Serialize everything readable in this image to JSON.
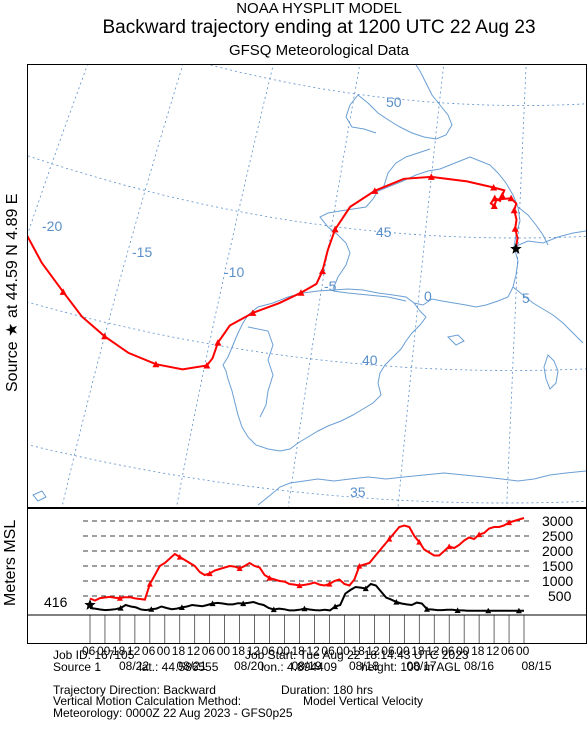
{
  "header": {
    "model": "NOAA HYSPLIT MODEL",
    "title": "Backward trajectory ending at 1200 UTC 22 Aug 23",
    "data": "GFSQ Meteorological Data"
  },
  "side": {
    "source_prefix": "Source",
    "star": "★",
    "source_suffix": "at   44.59 N   4.89 E",
    "altitude_label": "Meters MSL"
  },
  "map": {
    "lon_labels": [
      "-20",
      "-15",
      "-10",
      "-5",
      "0",
      "5"
    ],
    "lat_labels": [
      "50",
      "45",
      "40",
      "35"
    ],
    "colors": {
      "trajectory": "#ff0000",
      "grid": "#5b8fc9",
      "coast": "#6a9fd4",
      "label": "#5b8fc9"
    },
    "source": {
      "lat": 44.586555,
      "lon": 4.894409
    },
    "trajectory": [
      {
        "lon": 4.89,
        "lat": 44.59
      },
      {
        "lon": 4.95,
        "lat": 45.0
      },
      {
        "lon": 4.8,
        "lat": 45.35
      },
      {
        "lon": 4.85,
        "lat": 45.7
      },
      {
        "lon": 4.7,
        "lat": 46.05
      },
      {
        "lon": 4.8,
        "lat": 46.3
      },
      {
        "lon": 4.5,
        "lat": 46.5
      },
      {
        "lon": 3.7,
        "lat": 46.45
      },
      {
        "lon": 3.6,
        "lat": 46.2
      },
      {
        "lon": 3.4,
        "lat": 46.3
      },
      {
        "lon": 3.6,
        "lat": 46.5
      },
      {
        "lon": 3.9,
        "lat": 46.4
      },
      {
        "lon": 4.0,
        "lat": 46.6
      },
      {
        "lon": 4.1,
        "lat": 46.8
      },
      {
        "lon": 3.5,
        "lat": 46.9
      },
      {
        "lon": 2.0,
        "lat": 47.1
      },
      {
        "lon": 0.0,
        "lat": 47.2
      },
      {
        "lon": -1.5,
        "lat": 47.05
      },
      {
        "lon": -3.0,
        "lat": 46.5
      },
      {
        "lon": -4.2,
        "lat": 45.8
      },
      {
        "lon": -4.8,
        "lat": 44.9
      },
      {
        "lon": -5.0,
        "lat": 44.1
      },
      {
        "lon": -5.1,
        "lat": 43.3
      },
      {
        "lon": -5.3,
        "lat": 42.8
      },
      {
        "lon": -6.0,
        "lat": 42.4
      },
      {
        "lon": -7.0,
        "lat": 41.9
      },
      {
        "lon": -8.2,
        "lat": 41.4
      },
      {
        "lon": -9.2,
        "lat": 40.8
      },
      {
        "lon": -9.6,
        "lat": 40.1
      },
      {
        "lon": -9.7,
        "lat": 39.5
      },
      {
        "lon": -9.9,
        "lat": 39.2
      },
      {
        "lon": -11.0,
        "lat": 38.9
      },
      {
        "lon": -12.3,
        "lat": 38.9
      },
      {
        "lon": -13.7,
        "lat": 39.1
      },
      {
        "lon": -15.0,
        "lat": 39.5
      },
      {
        "lon": -16.3,
        "lat": 40.0
      },
      {
        "lon": -17.5,
        "lat": 40.7
      },
      {
        "lon": -18.9,
        "lat": 41.5
      },
      {
        "lon": -20.3,
        "lat": 42.5
      },
      {
        "lon": -21.5,
        "lat": 43.3
      },
      {
        "lon": -22.6,
        "lat": 44.0
      }
    ]
  },
  "profile": {
    "start_value": "416",
    "y_labels": [
      "3000",
      "2500",
      "2000",
      "1500",
      "1000",
      "500"
    ],
    "y_values": [
      3000,
      2500,
      2000,
      1500,
      1000,
      500
    ],
    "hour_ticks": [
      "06",
      "00",
      "18",
      "12",
      "06",
      "00",
      "18",
      "12",
      "06",
      "00",
      "18",
      "12",
      "06",
      "00",
      "18",
      "12",
      "06",
      "00",
      "18",
      "12",
      "06",
      "00",
      "18",
      "12",
      "06",
      "00",
      "18",
      "12",
      "06",
      "00"
    ],
    "date_labels": [
      "08/22",
      "08/21",
      "08/20",
      "08/19",
      "08/18",
      "08/17",
      "08/16",
      "08/15"
    ],
    "altitude_msl": [
      416,
      350,
      430,
      450,
      470,
      440,
      430,
      460,
      460,
      420,
      400,
      380,
      900,
      1200,
      1500,
      1600,
      1750,
      1900,
      1800,
      1700,
      1600,
      1500,
      1300,
      1200,
      1250,
      1350,
      1400,
      1450,
      1500,
      1480,
      1420,
      1500,
      1600,
      1500,
      1450,
      1200,
      1100,
      1050,
      1000,
      980,
      900,
      880,
      850,
      870,
      900,
      950,
      880,
      850,
      900,
      1000,
      1050,
      900,
      850,
      1050,
      1500,
      1550,
      1600,
      1800,
      2000,
      2200,
      2400,
      2600,
      2800,
      2850,
      2800,
      2500,
      2300,
      2050,
      1950,
      1850,
      1850,
      2000,
      2150,
      2100,
      2200,
      2350,
      2450,
      2400,
      2550,
      2600,
      2750,
      2800,
      2800,
      2850,
      2950,
      3000,
      3050,
      3100
    ],
    "agl_path": [
      100,
      80,
      50,
      30,
      40,
      60,
      100,
      200,
      150,
      120,
      50,
      30,
      60,
      80,
      150,
      100,
      60,
      80,
      120,
      150,
      200,
      180,
      160,
      200,
      250,
      270,
      250,
      220,
      220,
      260,
      250,
      270,
      300,
      240,
      200,
      100,
      50,
      80,
      60,
      20,
      20,
      40,
      80,
      50,
      30,
      20,
      40,
      20,
      150,
      200,
      580,
      700,
      800,
      780,
      750,
      900,
      850,
      650,
      450,
      380,
      300,
      250,
      220,
      200,
      280,
      250,
      60,
      50,
      30,
      30,
      40,
      40,
      20,
      20,
      10,
      10,
      10,
      10,
      10,
      10,
      10,
      10,
      10,
      10,
      10,
      10
    ]
  },
  "footer": {
    "job_id": "Job ID: 167105",
    "job_start": "Job Start: Tue Aug 22 18:14:43 UTC 2023",
    "source": "Source 1",
    "lat": "lat.: 44.586555",
    "lon": "lon.: 4.894409",
    "height": "height: 100 m AGL",
    "direction": "Trajectory Direction: Backward",
    "duration": "Duration: 180 hrs",
    "vertical": "Vertical Motion Calculation Method:",
    "vertical_value": "Model Vertical Velocity",
    "meteorology": "Meteorology: 0000Z 22 Aug 2023 - GFS0p25"
  }
}
